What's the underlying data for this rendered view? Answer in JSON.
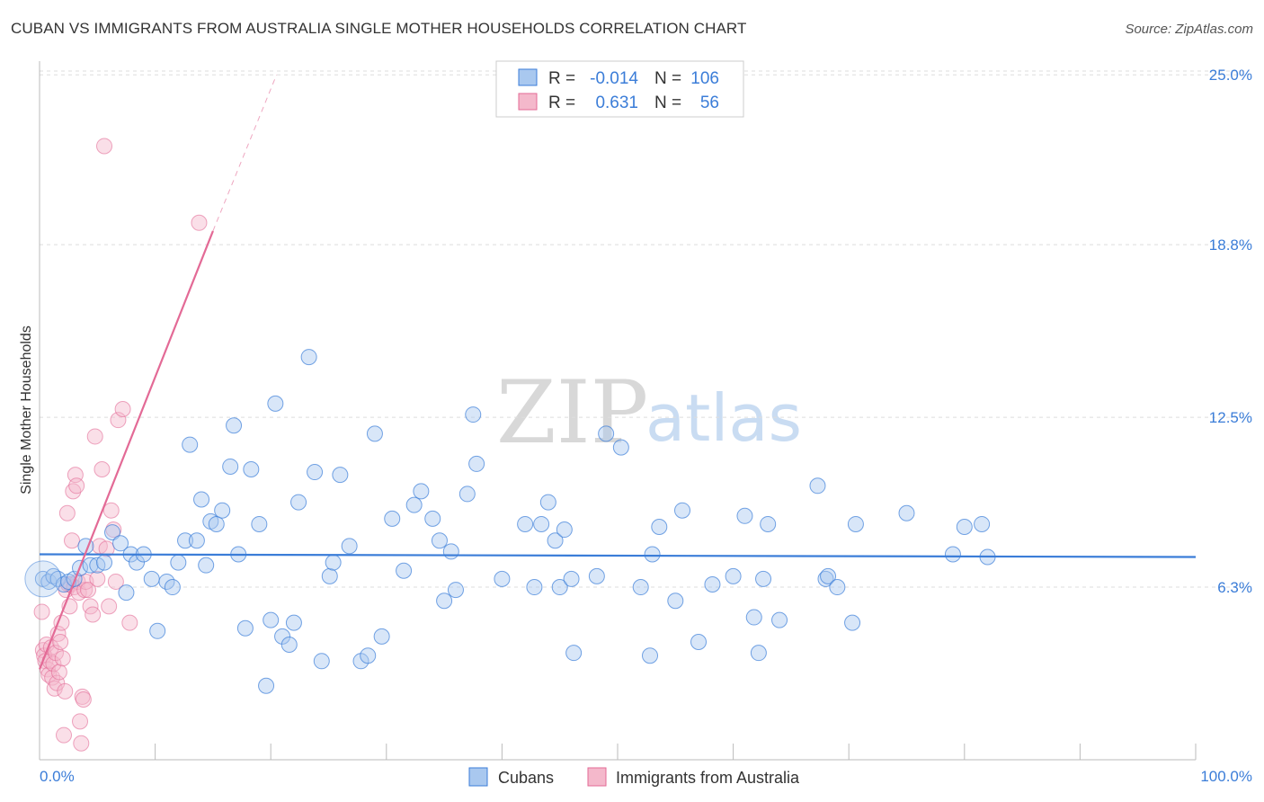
{
  "title": "CUBAN VS IMMIGRANTS FROM AUSTRALIA SINGLE MOTHER HOUSEHOLDS CORRELATION CHART",
  "source": "Source: ZipAtlas.com",
  "watermark": {
    "zip": "ZIP",
    "atlas": "atlas"
  },
  "colors": {
    "blue": "#3b7dd8",
    "blue_fill": "#a9c8ef",
    "pink": "#e36a96",
    "pink_fill": "#f4b8cb",
    "grid": "#dddddd"
  },
  "legend_top": [
    {
      "r_label": "R =",
      "r_value": "-0.014",
      "n_label": "N =",
      "n_value": "106"
    },
    {
      "r_label": "R =",
      "r_value": "0.631",
      "n_label": "N =",
      "n_value": "56"
    }
  ],
  "chart_data": {
    "type": "scatter",
    "title": "CUBAN VS IMMIGRANTS FROM AUSTRALIA SINGLE MOTHER HOUSEHOLDS CORRELATION CHART",
    "xlabel": "",
    "ylabel": "Single Mother Households",
    "xlim": [
      0,
      100
    ],
    "ylim": [
      0,
      25.5
    ],
    "y_ticks": [
      "6.3%",
      "12.5%",
      "18.8%",
      "25.0%"
    ],
    "y_tick_values": [
      6.3,
      12.5,
      18.8,
      25.0
    ],
    "x_tick_labels": [
      "0.0%",
      "100.0%"
    ],
    "grid": true,
    "legend_placement": "bottom-center",
    "series": [
      {
        "name": "Cubans",
        "color": "#3b7dd8",
        "r": "-0.014",
        "n": "106",
        "trend": {
          "x": [
            0,
            100
          ],
          "y": [
            7.5,
            7.4
          ]
        },
        "points": [
          [
            0.3,
            6.6
          ],
          [
            0.8,
            6.5
          ],
          [
            1.2,
            6.7
          ],
          [
            1.6,
            6.6
          ],
          [
            2.1,
            6.4
          ],
          [
            2.5,
            6.5
          ],
          [
            3.0,
            6.6
          ],
          [
            3.5,
            7.0
          ],
          [
            4.0,
            7.8
          ],
          [
            4.4,
            7.1
          ],
          [
            5.0,
            7.1
          ],
          [
            5.6,
            7.2
          ],
          [
            6.3,
            8.3
          ],
          [
            7.0,
            7.9
          ],
          [
            7.5,
            6.1
          ],
          [
            7.9,
            7.5
          ],
          [
            8.4,
            7.2
          ],
          [
            9.0,
            7.5
          ],
          [
            9.7,
            6.6
          ],
          [
            10.2,
            4.7
          ],
          [
            11.0,
            6.5
          ],
          [
            11.5,
            6.3
          ],
          [
            12.0,
            7.2
          ],
          [
            12.6,
            8.0
          ],
          [
            13.0,
            11.5
          ],
          [
            13.6,
            8.0
          ],
          [
            14.0,
            9.5
          ],
          [
            14.4,
            7.1
          ],
          [
            14.8,
            8.7
          ],
          [
            15.3,
            8.6
          ],
          [
            15.8,
            9.1
          ],
          [
            16.5,
            10.7
          ],
          [
            16.8,
            12.2
          ],
          [
            17.2,
            7.5
          ],
          [
            17.8,
            4.8
          ],
          [
            18.3,
            10.6
          ],
          [
            19.0,
            8.6
          ],
          [
            19.6,
            2.7
          ],
          [
            20.0,
            5.1
          ],
          [
            20.4,
            13.0
          ],
          [
            21.0,
            4.5
          ],
          [
            21.6,
            4.2
          ],
          [
            22.0,
            5.0
          ],
          [
            22.4,
            9.4
          ],
          [
            23.3,
            14.7
          ],
          [
            23.8,
            10.5
          ],
          [
            24.4,
            3.6
          ],
          [
            25.1,
            6.7
          ],
          [
            25.4,
            7.2
          ],
          [
            26.0,
            10.4
          ],
          [
            26.8,
            7.8
          ],
          [
            27.8,
            3.6
          ],
          [
            28.4,
            3.8
          ],
          [
            29.0,
            11.9
          ],
          [
            29.6,
            4.5
          ],
          [
            30.5,
            8.8
          ],
          [
            31.5,
            6.9
          ],
          [
            32.4,
            9.3
          ],
          [
            33.0,
            9.8
          ],
          [
            34.0,
            8.8
          ],
          [
            34.6,
            8.0
          ],
          [
            35.0,
            5.8
          ],
          [
            35.6,
            7.6
          ],
          [
            36.0,
            6.2
          ],
          [
            37.0,
            9.7
          ],
          [
            37.5,
            12.6
          ],
          [
            37.8,
            10.8
          ],
          [
            40.0,
            6.6
          ],
          [
            42.0,
            8.6
          ],
          [
            42.8,
            6.3
          ],
          [
            43.4,
            8.6
          ],
          [
            44.0,
            9.4
          ],
          [
            44.6,
            8.0
          ],
          [
            45.0,
            6.3
          ],
          [
            45.4,
            8.4
          ],
          [
            46.0,
            6.6
          ],
          [
            46.2,
            3.9
          ],
          [
            48.2,
            6.7
          ],
          [
            49.0,
            11.9
          ],
          [
            50.3,
            11.4
          ],
          [
            52.0,
            6.3
          ],
          [
            52.8,
            3.8
          ],
          [
            53.0,
            7.5
          ],
          [
            53.6,
            8.5
          ],
          [
            55.0,
            5.8
          ],
          [
            55.6,
            9.1
          ],
          [
            57.0,
            4.3
          ],
          [
            58.2,
            6.4
          ],
          [
            60.0,
            6.7
          ],
          [
            61.0,
            8.9
          ],
          [
            61.8,
            5.2
          ],
          [
            62.2,
            3.9
          ],
          [
            62.6,
            6.6
          ],
          [
            63.0,
            8.6
          ],
          [
            64.0,
            5.1
          ],
          [
            67.3,
            10.0
          ],
          [
            68.0,
            6.6
          ],
          [
            68.2,
            6.7
          ],
          [
            69.0,
            6.3
          ],
          [
            70.3,
            5.0
          ],
          [
            70.6,
            8.6
          ],
          [
            75.0,
            9.0
          ],
          [
            79.0,
            7.5
          ],
          [
            80.0,
            8.5
          ],
          [
            81.5,
            8.6
          ],
          [
            82.0,
            7.4
          ]
        ]
      },
      {
        "name": "Immigrants from Australia",
        "color": "#e36a96",
        "r": "0.631",
        "n": "56",
        "trend": {
          "x": [
            0,
            15
          ],
          "y": [
            3.3,
            19.3
          ],
          "dashed_to": [
            20.5,
            25
          ]
        },
        "points": [
          [
            0.2,
            5.4
          ],
          [
            0.3,
            4.0
          ],
          [
            0.4,
            3.8
          ],
          [
            0.5,
            3.6
          ],
          [
            0.6,
            4.2
          ],
          [
            0.7,
            3.3
          ],
          [
            0.8,
            3.1
          ],
          [
            0.9,
            3.6
          ],
          [
            1.0,
            4.1
          ],
          [
            1.1,
            3.0
          ],
          [
            1.2,
            3.5
          ],
          [
            1.3,
            2.6
          ],
          [
            1.4,
            3.9
          ],
          [
            1.5,
            2.8
          ],
          [
            1.6,
            4.6
          ],
          [
            1.7,
            3.2
          ],
          [
            1.8,
            4.3
          ],
          [
            1.9,
            5.0
          ],
          [
            2.0,
            3.7
          ],
          [
            2.1,
            0.9
          ],
          [
            2.2,
            2.5
          ],
          [
            2.3,
            6.2
          ],
          [
            2.4,
            9.0
          ],
          [
            2.5,
            6.4
          ],
          [
            2.6,
            5.6
          ],
          [
            2.7,
            6.4
          ],
          [
            2.8,
            8.0
          ],
          [
            2.9,
            9.8
          ],
          [
            3.0,
            6.3
          ],
          [
            3.1,
            10.4
          ],
          [
            3.2,
            10.0
          ],
          [
            3.3,
            6.5
          ],
          [
            3.4,
            6.1
          ],
          [
            3.5,
            1.4
          ],
          [
            3.6,
            0.6
          ],
          [
            3.7,
            2.3
          ],
          [
            3.8,
            2.2
          ],
          [
            3.9,
            6.2
          ],
          [
            4.0,
            6.5
          ],
          [
            4.2,
            6.2
          ],
          [
            4.4,
            5.6
          ],
          [
            4.6,
            5.3
          ],
          [
            4.8,
            11.8
          ],
          [
            5.0,
            6.6
          ],
          [
            5.2,
            7.8
          ],
          [
            5.4,
            10.6
          ],
          [
            5.6,
            22.4
          ],
          [
            5.8,
            7.7
          ],
          [
            6.0,
            5.6
          ],
          [
            6.2,
            9.1
          ],
          [
            6.4,
            8.4
          ],
          [
            6.6,
            6.5
          ],
          [
            6.8,
            12.4
          ],
          [
            7.2,
            12.8
          ],
          [
            7.8,
            5.0
          ],
          [
            13.8,
            19.6
          ]
        ]
      }
    ]
  }
}
